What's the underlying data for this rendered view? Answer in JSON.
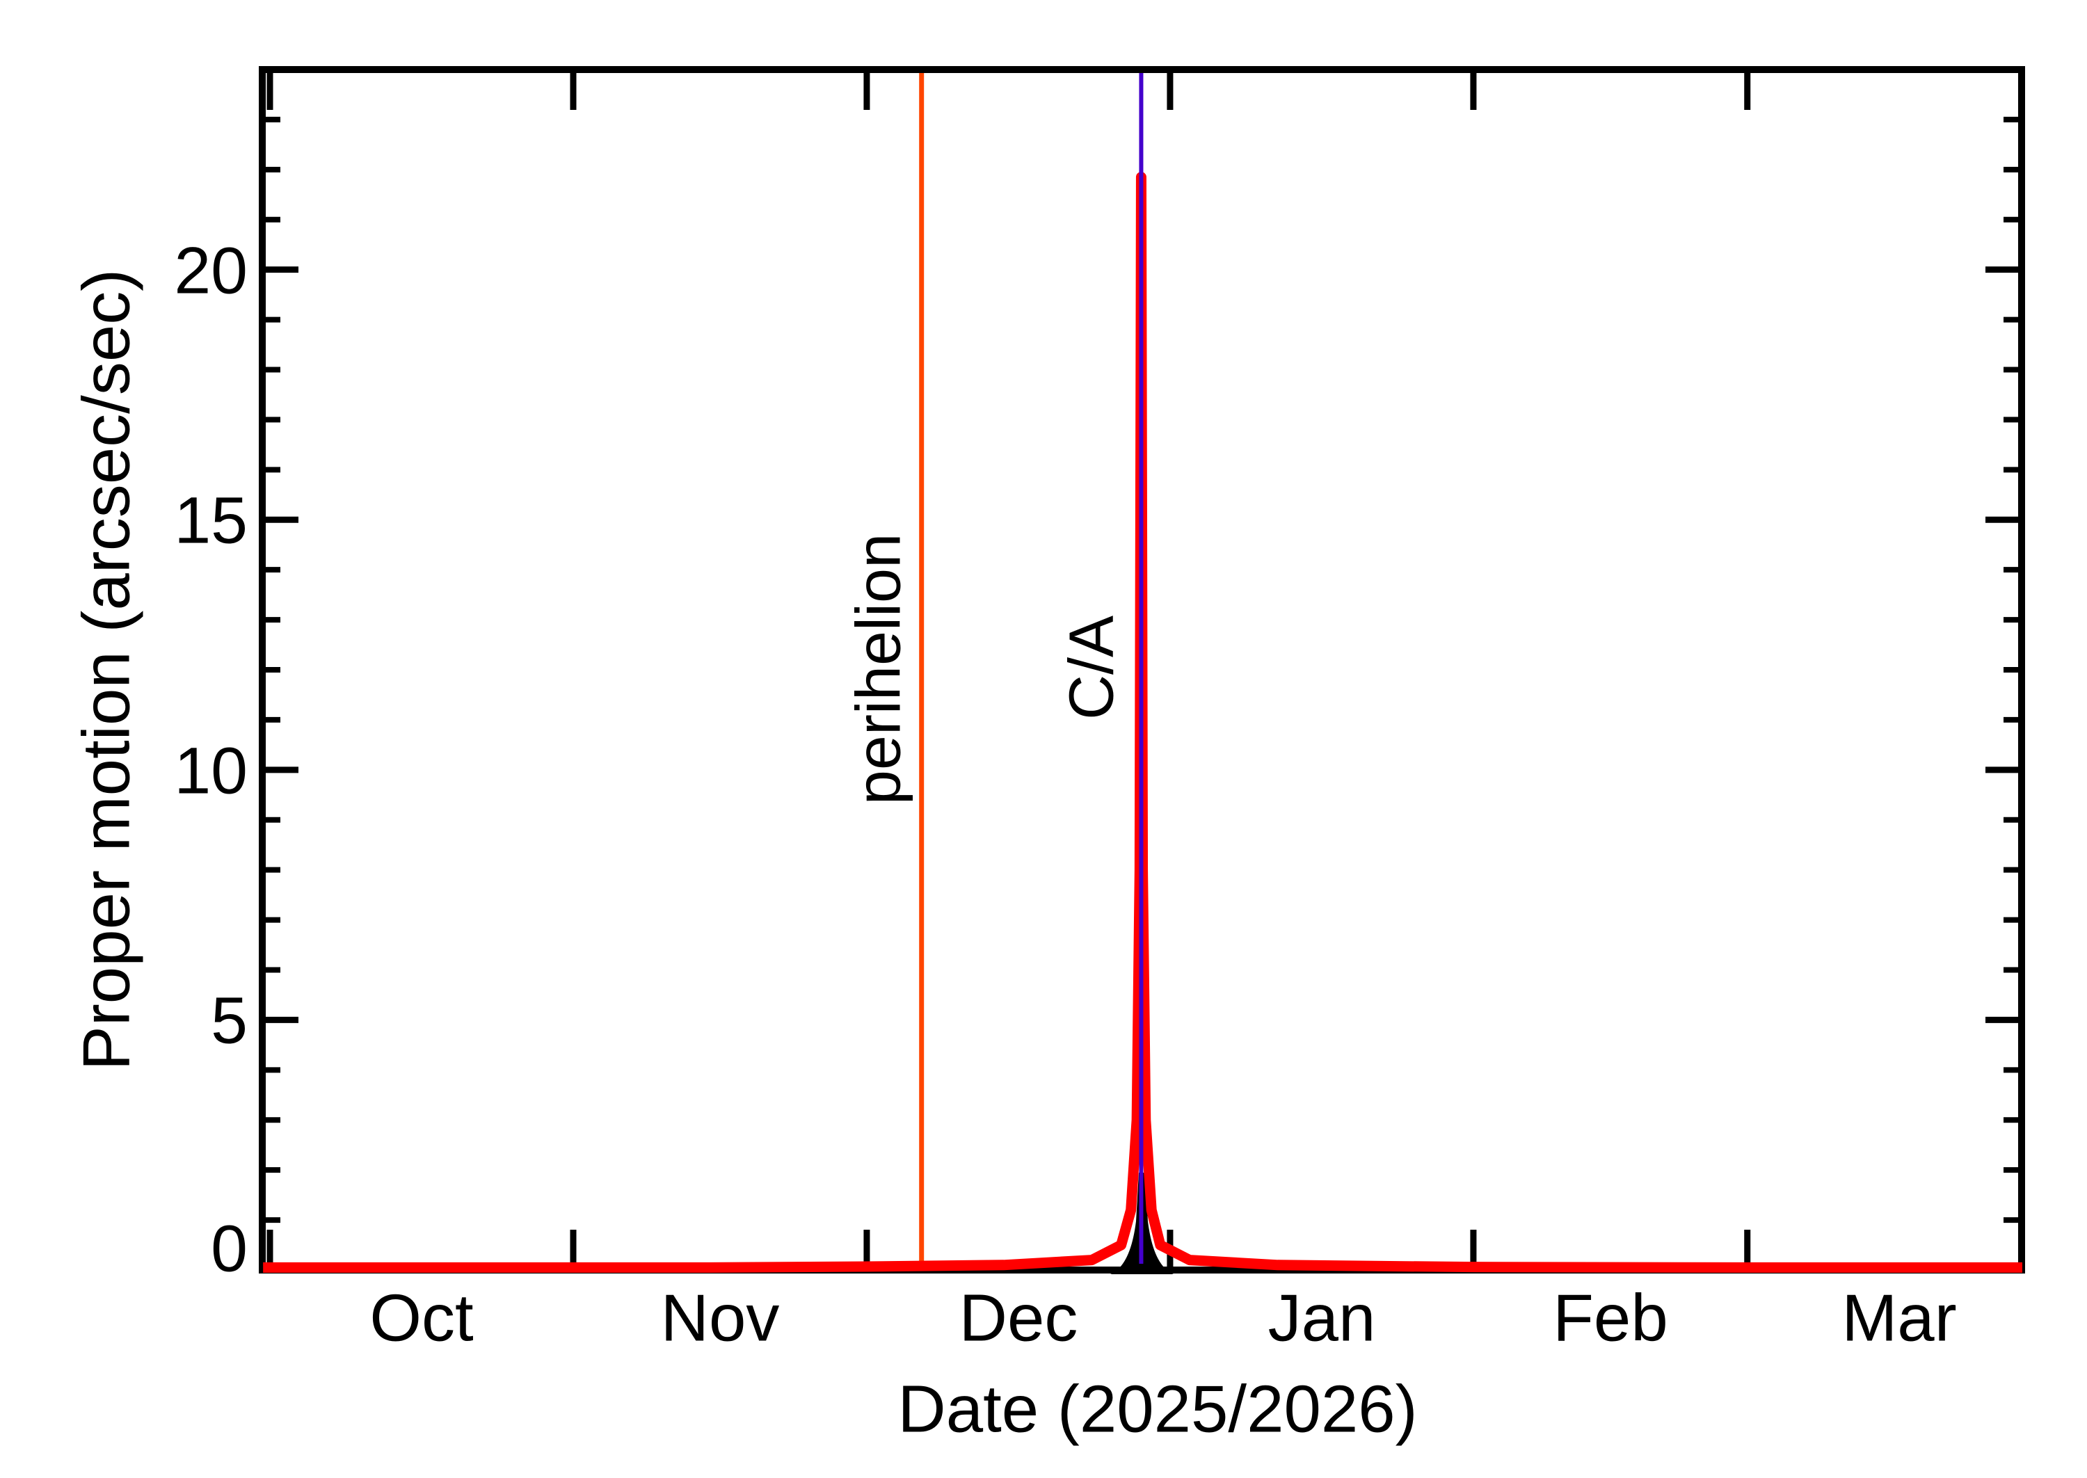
{
  "figure": {
    "background": "#ffffff",
    "frame_color": "#000000"
  },
  "chart_data": {
    "type": "line",
    "title": "",
    "xlabel": "Date (2025/2026)",
    "ylabel": "Proper motion (arcsec/sec)",
    "x_range": [
      "2025-09-30",
      "2026-03-29"
    ],
    "ylim": [
      0,
      24
    ],
    "grid": "off",
    "legend": "none",
    "y_major_ticks": [
      0,
      5,
      10,
      15,
      20
    ],
    "y_tick_labels": [
      "0",
      "5",
      "10",
      "15",
      "20"
    ],
    "y_minor_tick_step": 1,
    "x_tick_dates": [
      "2025-10-01",
      "2025-11-01",
      "2025-12-01",
      "2026-01-01",
      "2026-02-01",
      "2026-03-01"
    ],
    "month_labels": [
      "Oct",
      "Nov",
      "Dec",
      "Jan",
      "Feb",
      "Mar"
    ],
    "series": [
      {
        "name": "proper motion",
        "color": "#ff0000",
        "under_color": "#000000",
        "day_zero": "2025-10-01",
        "points_day_value": [
          [
            -0.7,
            0.05
          ],
          [
            15,
            0.05
          ],
          [
            31,
            0.05
          ],
          [
            45,
            0.05
          ],
          [
            61,
            0.07
          ],
          [
            75,
            0.1
          ],
          [
            84,
            0.2
          ],
          [
            87,
            0.5
          ],
          [
            88,
            1.2
          ],
          [
            88.6,
            3.0
          ],
          [
            88.9,
            8.0
          ],
          [
            89.05,
            21.85
          ],
          [
            89.2,
            8.0
          ],
          [
            89.5,
            3.0
          ],
          [
            90.1,
            1.2
          ],
          [
            91,
            0.5
          ],
          [
            94,
            0.2
          ],
          [
            103,
            0.1
          ],
          [
            123,
            0.06
          ],
          [
            151,
            0.05
          ],
          [
            179.1,
            0.05
          ]
        ],
        "peak": {
          "date": "2025-12-29",
          "value": 21.85
        }
      }
    ],
    "annotations": [
      {
        "label": "perihelion",
        "date": "2025-12-06",
        "x_day": 66.6,
        "color": "#ff4500"
      },
      {
        "label": "C/A",
        "date": "2025-12-29",
        "x_day": 89.05,
        "color": "#4400cc"
      }
    ]
  }
}
